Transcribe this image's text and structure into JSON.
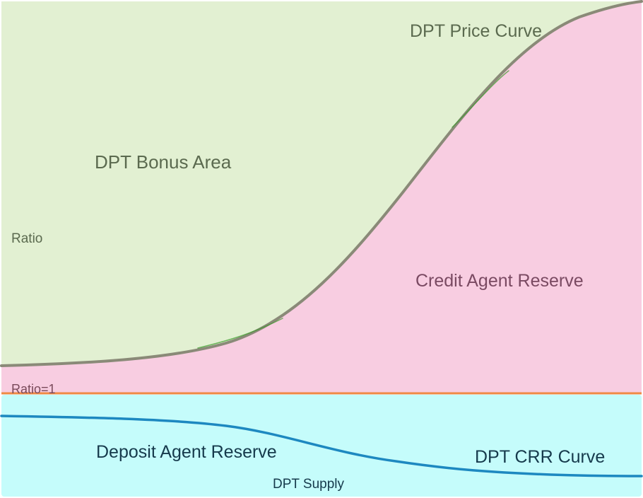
{
  "labels": {
    "price_curve": "DPT Price Curve",
    "bonus_area": "DPT Bonus Area",
    "ratio": "Ratio",
    "credit_reserve": "Credit Agent Reserve",
    "ratio_one": "Ratio=1",
    "deposit_reserve": "Deposit Agent Reserve",
    "crr_curve": "DPT CRR Curve",
    "supply": "DPT Supply"
  },
  "colors": {
    "bonus_area": "#e2f0d2",
    "credit_reserve": "#f8cde1",
    "deposit_reserve": "#c5fcfb",
    "price_curve": "#8a8a78",
    "price_curve_highlight": "#3a9a2a",
    "ratio_line": "#ee8a44",
    "crr_curve": "#1d88c0",
    "text_green": "#5b6a4f",
    "text_pink": "#7a4a62",
    "text_blue": "#163a4c",
    "text_ratio": "#7a4a5a"
  }
}
